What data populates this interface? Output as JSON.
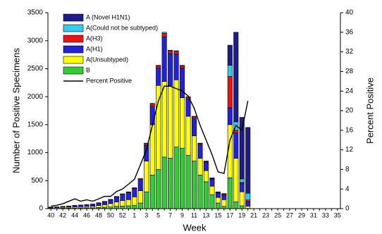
{
  "chart_data": {
    "type": "bar",
    "stacked": true,
    "ylabel": "Number of Positive Specimens",
    "y2label": "Percent Positive",
    "xlabel": "Week",
    "categories": [
      "40",
      null,
      "42",
      null,
      "44",
      null,
      "46",
      null,
      "48",
      null,
      "50",
      null,
      "52",
      null,
      "1",
      null,
      "3",
      null,
      "5",
      null,
      "7",
      null,
      "9",
      null,
      "11",
      null,
      "13",
      null,
      "15",
      null,
      "17",
      null,
      "19",
      null,
      "21",
      null,
      "23",
      null,
      "25",
      null,
      "27",
      null,
      "29",
      null,
      "31",
      null,
      "33",
      null,
      "35"
    ],
    "ylim": [
      0,
      3500
    ],
    "yticks": [
      0,
      500,
      1000,
      1500,
      2000,
      2500,
      3000,
      3500
    ],
    "y2lim": [
      0,
      40
    ],
    "y2ticks": [
      0,
      4,
      8,
      12,
      16,
      20,
      24,
      28,
      32,
      36,
      40
    ],
    "legend": "upper-left",
    "series": [
      {
        "name": "A (Novel H1N1)",
        "color": "#1c1c8c",
        "values": [
          0,
          0,
          0,
          0,
          0,
          0,
          0,
          0,
          0,
          0,
          0,
          0,
          0,
          0,
          0,
          0,
          0,
          0,
          0,
          0,
          0,
          0,
          0,
          0,
          0,
          0,
          0,
          0,
          0,
          0,
          360,
          1600,
          1100,
          1175,
          null,
          null,
          null,
          null,
          null,
          null,
          null,
          null,
          null,
          null,
          null,
          null,
          null,
          null,
          null
        ]
      },
      {
        "name": "A(Could not be subtyped)",
        "color": "#33ccee",
        "values": [
          0,
          0,
          0,
          0,
          0,
          0,
          0,
          0,
          0,
          0,
          0,
          0,
          0,
          0,
          0,
          0,
          10,
          10,
          10,
          20,
          10,
          10,
          10,
          10,
          5,
          5,
          5,
          10,
          10,
          10,
          200,
          150,
          60,
          120,
          null,
          null,
          null,
          null,
          null,
          null,
          null,
          null,
          null,
          null,
          null,
          null,
          null,
          null,
          null
        ]
      },
      {
        "name": "A(H3)",
        "color": "#ee1111",
        "values": [
          2,
          2,
          3,
          3,
          3,
          3,
          3,
          4,
          5,
          5,
          5,
          8,
          10,
          10,
          15,
          20,
          30,
          40,
          40,
          60,
          50,
          50,
          40,
          30,
          25,
          15,
          15,
          10,
          10,
          20,
          560,
          50,
          20,
          30,
          null,
          null,
          null,
          null,
          null,
          null,
          null,
          null,
          null,
          null,
          null,
          null,
          null,
          null,
          null
        ]
      },
      {
        "name": "A(H1)",
        "color": "#2222dd",
        "values": [
          10,
          12,
          15,
          18,
          25,
          28,
          30,
          35,
          45,
          55,
          70,
          90,
          110,
          130,
          150,
          200,
          280,
          330,
          310,
          800,
          570,
          460,
          530,
          310,
          320,
          250,
          150,
          130,
          80,
          80,
          300,
          450,
          150,
          80,
          null,
          null,
          null,
          null,
          null,
          null,
          null,
          null,
          null,
          null,
          null,
          null,
          null,
          null,
          null
        ]
      },
      {
        "name": "A(Unsubtyped)",
        "color": "#ffff00",
        "values": [
          10,
          12,
          15,
          18,
          20,
          22,
          25,
          28,
          35,
          45,
          60,
          80,
          100,
          110,
          150,
          220,
          550,
          900,
          1500,
          1350,
          1300,
          1200,
          900,
          700,
          450,
          300,
          200,
          150,
          100,
          120,
          950,
          780,
          250,
          40,
          null,
          null,
          null,
          null,
          null,
          null,
          null,
          null,
          null,
          null,
          null,
          null,
          null,
          null,
          null
        ]
      },
      {
        "name": "B",
        "color": "#33cc33",
        "values": [
          5,
          5,
          8,
          8,
          10,
          12,
          15,
          15,
          20,
          25,
          30,
          40,
          45,
          50,
          60,
          100,
          300,
          600,
          700,
          920,
          900,
          1100,
          1080,
          950,
          850,
          600,
          480,
          250,
          100,
          40,
          550,
          120,
          50,
          5,
          null,
          null,
          null,
          null,
          null,
          null,
          null,
          null,
          null,
          null,
          null,
          null,
          null,
          null,
          null
        ]
      },
      {
        "name": "Percent Positive",
        "color": "#000000",
        "axis": "y2",
        "values": [
          0.5,
          0.7,
          1,
          1.5,
          2,
          1.5,
          1.8,
          1.5,
          2,
          2.5,
          2.5,
          3.5,
          4,
          5,
          6,
          9,
          12,
          17,
          22,
          25,
          25,
          24.5,
          24,
          23,
          20.5,
          17,
          14,
          11,
          7.5,
          7.2,
          14,
          17,
          16,
          22,
          null,
          null,
          null,
          null,
          null,
          null,
          null,
          null,
          null,
          null,
          null,
          null,
          null,
          null,
          null
        ]
      }
    ]
  }
}
